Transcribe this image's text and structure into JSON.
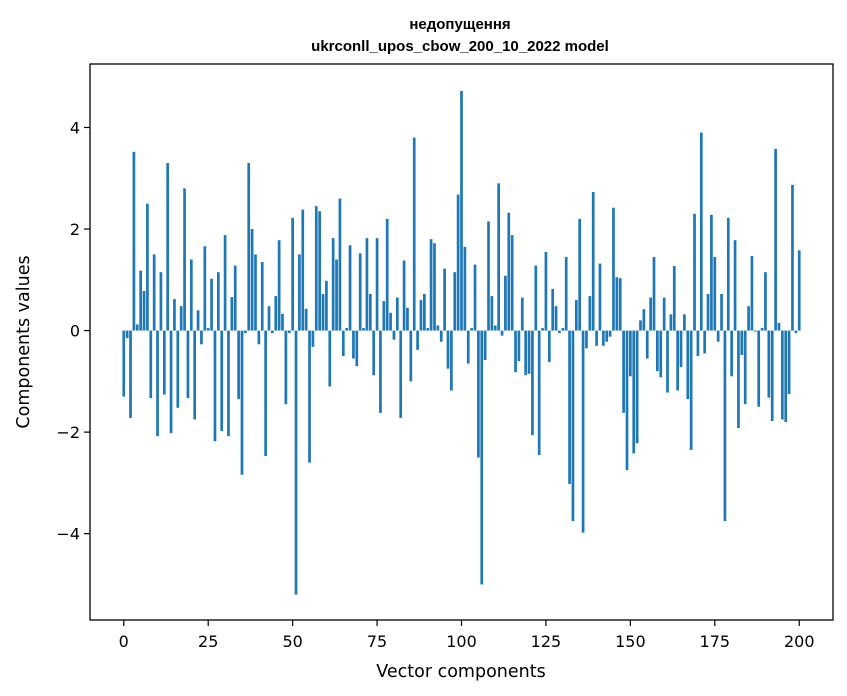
{
  "chart_data": {
    "type": "bar",
    "title": "недопущення",
    "subtitle": "ukrconll_upos_cbow_200_10_2022 model",
    "xlabel": "Vector components",
    "ylabel": "Components values",
    "xlim": [
      -10,
      210
    ],
    "ylim": [
      -5.7,
      5.25
    ],
    "xticks": [
      0,
      25,
      50,
      75,
      100,
      125,
      150,
      175,
      200
    ],
    "yticks": [
      -4,
      -2,
      0,
      2,
      4
    ],
    "xtick_labels": [
      "0",
      "25",
      "50",
      "75",
      "100",
      "125",
      "150",
      "175",
      "200"
    ],
    "ytick_labels": [
      "−4",
      "−2",
      "0",
      "2",
      "4"
    ],
    "color": "#1f77b4",
    "values": [
      -1.3,
      -0.15,
      -1.72,
      3.52,
      0.12,
      1.18,
      0.78,
      2.5,
      -1.33,
      1.5,
      -2.08,
      1.15,
      -1.26,
      3.3,
      -2.02,
      0.62,
      -1.52,
      0.48,
      2.8,
      -1.33,
      1.4,
      -1.75,
      0.4,
      -0.27,
      1.66,
      0.05,
      1.02,
      -2.18,
      1.15,
      -1.98,
      1.88,
      -2.08,
      0.66,
      1.28,
      -1.35,
      -2.84,
      -0.05,
      3.3,
      2.0,
      1.5,
      -0.27,
      1.35,
      -2.47,
      0.48,
      -0.05,
      0.68,
      1.78,
      0.33,
      -1.45,
      -0.05,
      2.22,
      -5.2,
      1.5,
      2.38,
      0.43,
      -2.6,
      -0.32,
      2.45,
      2.35,
      0.72,
      0.98,
      -1.1,
      1.82,
      1.4,
      2.6,
      -0.5,
      0.05,
      1.68,
      -0.55,
      -0.7,
      1.52,
      0.05,
      1.82,
      0.72,
      -0.88,
      1.82,
      -1.62,
      0.58,
      2.2,
      0.35,
      -0.18,
      0.65,
      -1.72,
      1.38,
      0.45,
      -1.0,
      3.8,
      -0.38,
      0.6,
      0.72,
      0.05,
      1.8,
      1.72,
      0.1,
      -0.22,
      1.22,
      -0.75,
      -1.18,
      1.15,
      2.68,
      4.72,
      1.65,
      -0.65,
      0.05,
      1.3,
      -2.5,
      -5.0,
      -0.58,
      2.15,
      0.68,
      0.1,
      2.9,
      -0.1,
      1.08,
      2.32,
      1.88,
      -0.82,
      -0.6,
      0.65,
      -0.88,
      -0.85,
      -2.06,
      1.28,
      -2.45,
      0.05,
      1.55,
      -0.62,
      0.82,
      0.48,
      -0.05,
      0.05,
      1.45,
      -3.02,
      -3.75,
      0.6,
      2.2,
      -3.98,
      -0.35,
      0.68,
      2.73,
      -0.3,
      1.32,
      -0.3,
      -0.22,
      -0.12,
      2.42,
      1.05,
      1.03,
      -1.62,
      -2.75,
      -0.9,
      -2.42,
      -2.22,
      0.2,
      0.42,
      -0.55,
      0.65,
      1.45,
      -0.8,
      -0.92,
      0.65,
      -1.22,
      0.32,
      1.27,
      -1.18,
      -0.72,
      0.32,
      -1.35,
      -2.35,
      2.3,
      -0.5,
      3.9,
      -0.45,
      0.72,
      2.28,
      1.45,
      -0.22,
      0.72,
      -3.75,
      2.22,
      -0.9,
      1.78,
      -1.92,
      -0.48,
      -1.45,
      0.48,
      1.47,
      -0.02,
      -1.5,
      0.05,
      1.15,
      -1.32,
      -1.78,
      3.58,
      0.15,
      -1.75,
      -1.8,
      -1.25,
      2.87,
      -0.05,
      1.58
    ]
  }
}
